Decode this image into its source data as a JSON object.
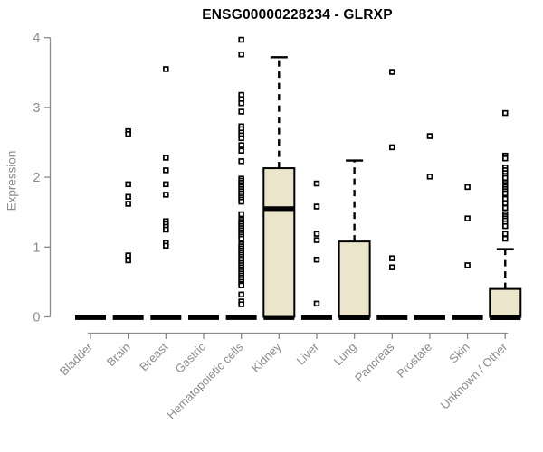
{
  "chart_data": {
    "type": "boxplot",
    "title": "ENSG00000228234 - GLRXP",
    "ylabel": "Expression",
    "xlabel": "",
    "ylim": [
      0,
      4
    ],
    "yticks": [
      0,
      1,
      2,
      3,
      4
    ],
    "grid": false,
    "legend": "none",
    "categories": [
      "Bladder",
      "Brain",
      "Breast",
      "Gastric",
      "Hematopoietic cells",
      "Kidney",
      "Liver",
      "Lung",
      "Pancreas",
      "Prostate",
      "Skin",
      "Unknown / Other"
    ],
    "boxes": [
      {
        "category": "Bladder",
        "q1": 0,
        "median": 0,
        "q3": 0,
        "whisker_low": 0,
        "whisker_high": 0,
        "outliers": []
      },
      {
        "category": "Brain",
        "q1": 0,
        "median": 0,
        "q3": 0,
        "whisker_low": 0,
        "whisker_high": 0,
        "outliers": [
          2.66,
          2.62,
          1.9,
          1.72,
          1.62,
          0.88,
          0.81
        ]
      },
      {
        "category": "Breast",
        "q1": 0,
        "median": 0,
        "q3": 0,
        "whisker_low": 0,
        "whisker_high": 0,
        "outliers": [
          3.55,
          2.28,
          2.1,
          1.9,
          1.75,
          1.37,
          1.33,
          1.29,
          1.25,
          1.06,
          1.02
        ]
      },
      {
        "category": "Gastric",
        "q1": 0,
        "median": 0,
        "q3": 0,
        "whisker_low": 0,
        "whisker_high": 0,
        "outliers": []
      },
      {
        "category": "Hematopoietic cells",
        "q1": 0,
        "median": 0,
        "q3": 0,
        "whisker_low": 0,
        "whisker_high": 0,
        "outliers": [
          3.97,
          3.76,
          3.18,
          3.12,
          3.06,
          2.94,
          2.73,
          2.69,
          2.64,
          2.6,
          2.56,
          2.46,
          2.38,
          2.23,
          1.98,
          1.95,
          1.92,
          1.89,
          1.86,
          1.83,
          1.8,
          1.77,
          1.74,
          1.71,
          1.68,
          1.65,
          1.47,
          1.39,
          1.36,
          1.33,
          1.3,
          1.27,
          1.24,
          1.21,
          1.18,
          1.15,
          1.12,
          1.04,
          1.01,
          0.98,
          0.95,
          0.92,
          0.89,
          0.86,
          0.83,
          0.8,
          0.77,
          0.74,
          0.71,
          0.68,
          0.65,
          0.62,
          0.59,
          0.56,
          0.53,
          0.5,
          0.47,
          0.45,
          0.32,
          0.22,
          0.18
        ]
      },
      {
        "category": "Kidney",
        "q1": 0,
        "median": 1.55,
        "q3": 2.13,
        "whisker_low": 0,
        "whisker_high": 3.72,
        "outliers": []
      },
      {
        "category": "Liver",
        "q1": 0,
        "median": 0,
        "q3": 0,
        "whisker_low": 0,
        "whisker_high": 0,
        "outliers": [
          1.91,
          1.58,
          1.19,
          1.1,
          0.82,
          0.19
        ]
      },
      {
        "category": "Lung",
        "q1": 0,
        "median": 0,
        "q3": 1.08,
        "whisker_low": 0,
        "whisker_high": 2.24,
        "outliers": []
      },
      {
        "category": "Pancreas",
        "q1": 0,
        "median": 0,
        "q3": 0,
        "whisker_low": 0,
        "whisker_high": 0,
        "outliers": [
          3.51,
          2.43,
          0.84,
          0.71
        ]
      },
      {
        "category": "Prostate",
        "q1": 0,
        "median": 0,
        "q3": 0,
        "whisker_low": 0,
        "whisker_high": 0,
        "outliers": [
          2.59,
          2.01
        ]
      },
      {
        "category": "Skin",
        "q1": 0,
        "median": 0,
        "q3": 0,
        "whisker_low": 0,
        "whisker_high": 0,
        "outliers": [
          1.86,
          1.41,
          0.74
        ]
      },
      {
        "category": "Unknown / Other",
        "q1": 0,
        "median": 0,
        "q3": 0.4,
        "whisker_low": 0,
        "whisker_high": 0.97,
        "outliers": [
          2.92,
          2.31,
          2.27,
          2.14,
          2.1,
          2.06,
          2.02,
          1.99,
          1.92,
          1.89,
          1.86,
          1.83,
          1.8,
          1.77,
          1.69,
          1.63,
          1.56,
          1.47,
          1.44,
          1.41,
          1.38,
          1.34,
          1.3,
          1.19,
          1.12
        ]
      }
    ]
  },
  "colors": {
    "box_fill": "#ebe6cb",
    "box_border": "#000000",
    "median": "#000000",
    "whisker": "#000000",
    "outlier": "#000000",
    "axis": "#8b8b8b",
    "tick_label": "#8b8b8b",
    "title": "#000000",
    "background": "#ffffff"
  }
}
